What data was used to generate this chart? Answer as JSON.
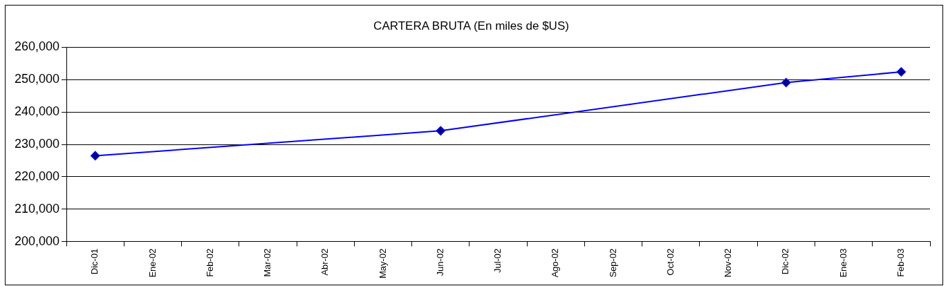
{
  "chart_data": {
    "type": "line",
    "title": "CARTERA BRUTA (En miles de $US)",
    "categories": [
      "Dic-01",
      "Ene-02",
      "Feb-02",
      "Mar-02",
      "Abr-02",
      "May-02",
      "Jun-02",
      "Jul-02",
      "Ago-02",
      "Sep-02",
      "Oct-02",
      "Nov-02",
      "Dic-02",
      "Ene-03",
      "Feb-03"
    ],
    "series": [
      {
        "color": "#0000ff",
        "values": [
          226500,
          null,
          null,
          null,
          null,
          null,
          234200,
          null,
          null,
          null,
          null,
          null,
          249100,
          null,
          252400
        ]
      }
    ],
    "ylim": [
      200000,
      260000
    ],
    "yticks": [
      {
        "value": 200000,
        "label": "200,000"
      },
      {
        "value": 210000,
        "label": "210,000"
      },
      {
        "value": 220000,
        "label": "220,000"
      },
      {
        "value": 230000,
        "label": "230,000"
      },
      {
        "value": 240000,
        "label": "240,000"
      },
      {
        "value": 250000,
        "label": "250,000"
      },
      {
        "value": 260000,
        "label": "260,000"
      }
    ],
    "grid": "y",
    "legend": false,
    "marker": "diamond",
    "line_style": "solid"
  }
}
